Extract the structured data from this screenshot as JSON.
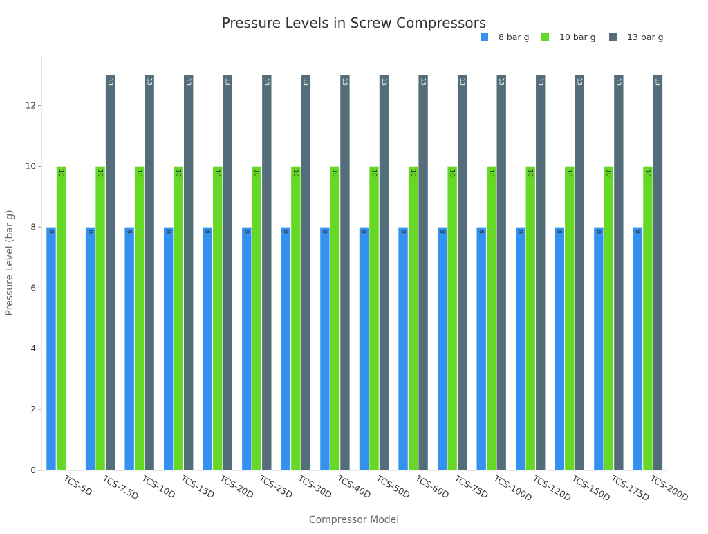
{
  "chart_data": {
    "type": "bar",
    "title": "Pressure Levels in Screw Compressors",
    "xlabel": "Compressor Model",
    "ylabel": "Pressure Level (bar g)",
    "ylim": [
      0,
      13.65
    ],
    "yticks": [
      0,
      2,
      4,
      6,
      8,
      10,
      12
    ],
    "grid": false,
    "legend_position": "top-right",
    "categories": [
      "TCS-5D",
      "TCS-7.5D",
      "TCS-10D",
      "TCS-15D",
      "TCS-20D",
      "TCS-25D",
      "TCS-30D",
      "TCS-40D",
      "TCS-50D",
      "TCS-60D",
      "TCS-75D",
      "TCS-100D",
      "TCS-120D",
      "TCS-150D",
      "TCS-175D",
      "TCS-200D"
    ],
    "series": [
      {
        "name": "8 bar g",
        "color": "#3391f0",
        "values": [
          8,
          8,
          8,
          8,
          8,
          8,
          8,
          8,
          8,
          8,
          8,
          8,
          8,
          8,
          8,
          8
        ]
      },
      {
        "name": "10 bar g",
        "color": "#66d926",
        "values": [
          10,
          10,
          10,
          10,
          10,
          10,
          10,
          10,
          10,
          10,
          10,
          10,
          10,
          10,
          10,
          10
        ]
      },
      {
        "name": "13 bar g",
        "color": "#536e7a",
        "values": [
          null,
          13,
          13,
          13,
          13,
          13,
          13,
          13,
          13,
          13,
          13,
          13,
          13,
          13,
          13,
          13
        ]
      }
    ]
  }
}
